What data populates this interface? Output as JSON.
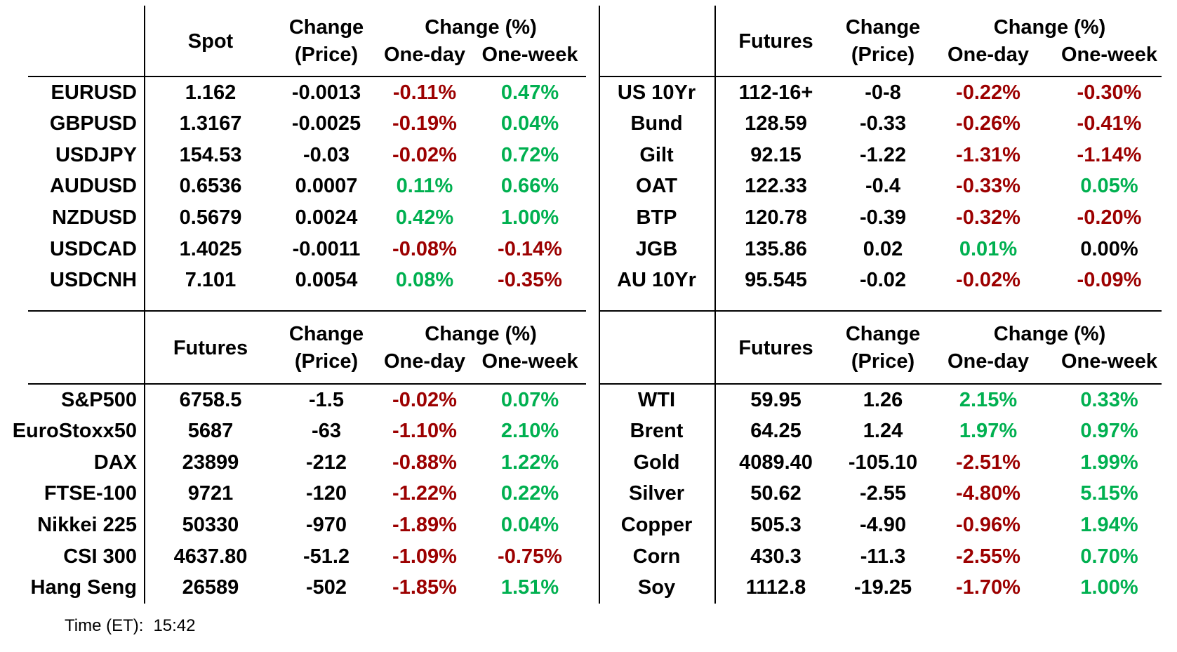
{
  "colors": {
    "positive": "#00B050",
    "negative": "#9C0000",
    "neutral": "#000000",
    "text": "#000000",
    "background": "#FFFFFF"
  },
  "labels": {
    "change": "Change",
    "price": "(Price)",
    "change_pct": "Change (%)",
    "one_day": "One-day",
    "one_week": "One-week"
  },
  "footer": {
    "time_label": "Time (ET):",
    "time_value": "15:42"
  },
  "chart_data": [
    {
      "type": "table",
      "name": "fx_spot",
      "value_header": "Spot",
      "columns": [
        "",
        "Spot",
        "Change (Price)",
        "Change (%) One-day",
        "Change (%) One-week"
      ],
      "rows": [
        [
          "EURUSD",
          "1.162",
          "-0.0013",
          "-0.11%",
          "0.47%"
        ],
        [
          "GBPUSD",
          "1.3167",
          "-0.0025",
          "-0.19%",
          "0.04%"
        ],
        [
          "USDJPY",
          "154.53",
          "-0.03",
          "-0.02%",
          "0.72%"
        ],
        [
          "AUDUSD",
          "0.6536",
          "0.0007",
          "0.11%",
          "0.66%"
        ],
        [
          "NZDUSD",
          "0.5679",
          "0.0024",
          "0.42%",
          "1.00%"
        ],
        [
          "USDCAD",
          "1.4025",
          "-0.0011",
          "-0.08%",
          "-0.14%"
        ],
        [
          "USDCNH",
          "7.101",
          "0.0054",
          "0.08%",
          "-0.35%"
        ]
      ]
    },
    {
      "type": "table",
      "name": "bond_futures",
      "value_header": "Futures",
      "columns": [
        "",
        "Futures",
        "Change (Price)",
        "Change (%) One-day",
        "Change (%) One-week"
      ],
      "rows": [
        [
          "US 10Yr",
          "112-16+",
          "-0-8",
          "-0.22%",
          "-0.30%"
        ],
        [
          "Bund",
          "128.59",
          "-0.33",
          "-0.26%",
          "-0.41%"
        ],
        [
          "Gilt",
          "92.15",
          "-1.22",
          "-1.31%",
          "-1.14%"
        ],
        [
          "OAT",
          "122.33",
          "-0.4",
          "-0.33%",
          "0.05%"
        ],
        [
          "BTP",
          "120.78",
          "-0.39",
          "-0.32%",
          "-0.20%"
        ],
        [
          "JGB",
          "135.86",
          "0.02",
          "0.01%",
          "0.00%"
        ],
        [
          "AU 10Yr",
          "95.545",
          "-0.02",
          "-0.02%",
          "-0.09%"
        ]
      ]
    },
    {
      "type": "table",
      "name": "equity_futures",
      "value_header": "Futures",
      "columns": [
        "",
        "Futures",
        "Change (Price)",
        "Change (%) One-day",
        "Change (%) One-week"
      ],
      "rows": [
        [
          "S&P500",
          "6758.5",
          "-1.5",
          "-0.02%",
          "0.07%"
        ],
        [
          "EuroStoxx50",
          "5687",
          "-63",
          "-1.10%",
          "2.10%"
        ],
        [
          "DAX",
          "23899",
          "-212",
          "-0.88%",
          "1.22%"
        ],
        [
          "FTSE-100",
          "9721",
          "-120",
          "-1.22%",
          "0.22%"
        ],
        [
          "Nikkei 225",
          "50330",
          "-970",
          "-1.89%",
          "0.04%"
        ],
        [
          "CSI 300",
          "4637.80",
          "-51.2",
          "-1.09%",
          "-0.75%"
        ],
        [
          "Hang Seng",
          "26589",
          "-502",
          "-1.85%",
          "1.51%"
        ]
      ]
    },
    {
      "type": "table",
      "name": "commodity_futures",
      "value_header": "Futures",
      "columns": [
        "",
        "Futures",
        "Change (Price)",
        "Change (%) One-day",
        "Change (%) One-week"
      ],
      "rows": [
        [
          "WTI",
          "59.95",
          "1.26",
          "2.15%",
          "0.33%"
        ],
        [
          "Brent",
          "64.25",
          "1.24",
          "1.97%",
          "0.97%"
        ],
        [
          "Gold",
          "4089.40",
          "-105.10",
          "-2.51%",
          "1.99%"
        ],
        [
          "Silver",
          "50.62",
          "-2.55",
          "-4.80%",
          "5.15%"
        ],
        [
          "Copper",
          "505.3",
          "-4.90",
          "-0.96%",
          "1.94%"
        ],
        [
          "Corn",
          "430.3",
          "-11.3",
          "-2.55%",
          "0.70%"
        ],
        [
          "Soy",
          "1112.8",
          "-19.25",
          "-1.70%",
          "1.00%"
        ]
      ]
    }
  ]
}
